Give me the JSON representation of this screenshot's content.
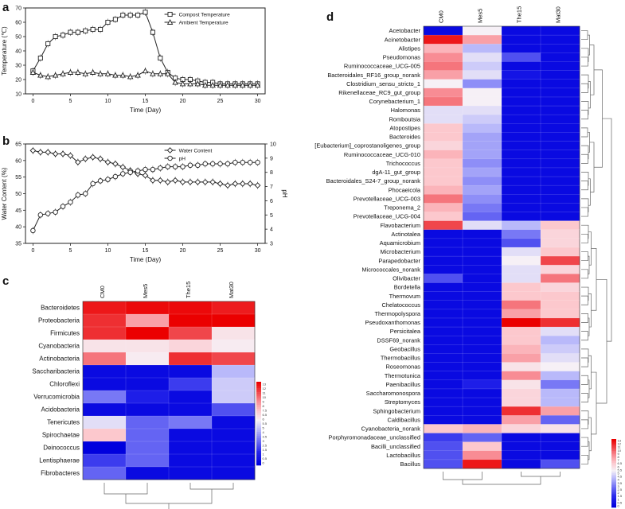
{
  "panels": {
    "a": "a",
    "b": "b",
    "c": "c",
    "d": "d"
  },
  "chart_data": [
    {
      "id": "a",
      "type": "line",
      "xlabel": "Time (Day)",
      "ylabel": "Temperature (℃)",
      "xlim": [
        -1,
        31
      ],
      "ylim": [
        10,
        70
      ],
      "xticks": [
        0,
        5,
        10,
        15,
        20,
        25,
        30
      ],
      "yticks": [
        10,
        20,
        30,
        40,
        50,
        60,
        70
      ],
      "series": [
        {
          "name": "Compost Temperature",
          "marker": "square",
          "x": [
            0,
            1,
            2,
            3,
            4,
            5,
            6,
            7,
            8,
            9,
            10,
            11,
            12,
            13,
            14,
            15,
            16,
            17,
            18,
            19,
            20,
            21,
            22,
            23,
            24,
            25,
            26,
            27,
            28,
            29,
            30
          ],
          "y": [
            26,
            35,
            45,
            50,
            51,
            53,
            53,
            54,
            55,
            55,
            60,
            62,
            65,
            65,
            65,
            67,
            53,
            35,
            25,
            21,
            20,
            20,
            19,
            18,
            18,
            17,
            17,
            17,
            17,
            17,
            17
          ]
        },
        {
          "name": "Ambient Temperature",
          "marker": "triangle",
          "x": [
            0,
            1,
            2,
            3,
            4,
            5,
            6,
            7,
            8,
            9,
            10,
            11,
            12,
            13,
            14,
            15,
            16,
            17,
            18,
            19,
            20,
            21,
            22,
            23,
            24,
            25,
            26,
            27,
            28,
            29,
            30
          ],
          "y": [
            25,
            23,
            22,
            23,
            24,
            25,
            25,
            24,
            25,
            24,
            24,
            23,
            23,
            22,
            23,
            26,
            24,
            24,
            24,
            18,
            17,
            17,
            17,
            16,
            16,
            16,
            16,
            16,
            16,
            16,
            16
          ]
        }
      ]
    },
    {
      "id": "b",
      "type": "line",
      "xlabel": "Time (Day)",
      "ylabel": "Water Content (%)",
      "ylabel_right": "pH",
      "xlim": [
        -1,
        31
      ],
      "ylim": [
        35,
        65
      ],
      "ylim_right": [
        3,
        10
      ],
      "xticks": [
        0,
        5,
        10,
        15,
        20,
        25,
        30
      ],
      "yticks": [
        35,
        40,
        45,
        50,
        55,
        60,
        65
      ],
      "yticks_right": [
        3,
        4,
        5,
        6,
        7,
        8,
        9,
        10
      ],
      "series": [
        {
          "name": "Water Content",
          "marker": "diamond",
          "axis": "left",
          "x": [
            0,
            1,
            2,
            3,
            4,
            5,
            6,
            7,
            8,
            9,
            10,
            11,
            12,
            13,
            14,
            15,
            16,
            17,
            18,
            19,
            20,
            21,
            22,
            23,
            24,
            25,
            26,
            27,
            28,
            29,
            30
          ],
          "y": [
            63,
            62.5,
            62.5,
            62,
            62,
            61.5,
            59.5,
            60.5,
            61,
            60.5,
            59.5,
            59,
            58,
            57,
            56,
            55.5,
            54,
            54,
            53.5,
            54,
            53.5,
            53.5,
            53.5,
            53.5,
            53.5,
            53,
            52.5,
            53,
            53,
            53,
            52.5
          ]
        },
        {
          "name": "pH",
          "marker": "circle",
          "axis": "right",
          "x": [
            0,
            1,
            2,
            3,
            4,
            5,
            6,
            7,
            8,
            9,
            10,
            11,
            12,
            13,
            14,
            15,
            16,
            17,
            18,
            19,
            20,
            21,
            22,
            23,
            24,
            25,
            26,
            27,
            28,
            29,
            30
          ],
          "y": [
            3.9,
            5.0,
            5.1,
            5.2,
            5.6,
            5.9,
            6.4,
            6.5,
            7.2,
            7.4,
            7.5,
            7.7,
            7.9,
            8.0,
            8.1,
            8.2,
            8.2,
            8.3,
            8.4,
            8.4,
            8.4,
            8.5,
            8.5,
            8.6,
            8.6,
            8.6,
            8.6,
            8.7,
            8.7,
            8.7,
            8.7
          ]
        }
      ]
    },
    {
      "id": "c",
      "type": "heatmap",
      "columns": [
        "CM0",
        "Mes5",
        "The15",
        "Mat30"
      ],
      "rows": [
        "Bacteroidetes",
        "Proteobacteria",
        "Firmicutes",
        "Cyanobacteria",
        "Actinobacteria",
        "Saccharibacteria",
        "Chloroflexi",
        "Verrucomicrobia",
        "Acidobacteria",
        "Tenericutes",
        "Spirochaetae",
        "Deinococcus",
        "Lentisphaerae",
        "Fibrobacteres"
      ],
      "values": [
        [
          12.5,
          12.8,
          12.8,
          12.4
        ],
        [
          12.0,
          9.5,
          13.0,
          13.0
        ],
        [
          12.0,
          13.0,
          11.5,
          7.5
        ],
        [
          7.5,
          7.5,
          8.0,
          7.2
        ],
        [
          10.5,
          7.2,
          12.0,
          11.5
        ],
        [
          0.5,
          0.5,
          0.5,
          5.5
        ],
        [
          0.5,
          0.5,
          2.5,
          6.0
        ],
        [
          4.0,
          1.5,
          0.5,
          6.0
        ],
        [
          0.5,
          0.5,
          0.5,
          3.0
        ],
        [
          6.5,
          3.5,
          4.0,
          0.5
        ],
        [
          8.5,
          3.5,
          0.5,
          0.5
        ],
        [
          0.0,
          3.5,
          0.5,
          0.5
        ],
        [
          2.5,
          3.5,
          0.5,
          0.5
        ],
        [
          3.5,
          0.5,
          0.5,
          0.5
        ]
      ],
      "colorbar_ticks": [
        "13",
        "12",
        "11",
        "10",
        "9",
        "8",
        "7.5",
        "6.5",
        "6",
        "5.5",
        "5",
        "4",
        "3.5",
        "3",
        "2.5",
        "1.5",
        "1",
        "0.5",
        "0"
      ],
      "row_dendrogram": false,
      "column_dendrogram": true
    },
    {
      "id": "d",
      "type": "heatmap",
      "columns": [
        "CM0",
        "Mes5",
        "The15",
        "Mat30"
      ],
      "rows": [
        "Acetobacter",
        "Acinetobacter",
        "Alistipes",
        "Pseudomonas",
        "Ruminococcaceae_UCG-005",
        "Bacteroidales_RF16_group_norank",
        "Clostridium_sensu_stricto_1",
        "Rikenellaceae_RC9_gut_group",
        "Corynebacterium_1",
        "Halomonas",
        "Romboutsia",
        "Atopostipes",
        "Bacteroides",
        "[Eubacterium]_coprostanoligenes_group",
        "Ruminococcaceae_UCG-010",
        "Trichococcus",
        "dgA-11_gut_group",
        "Bacteroidales_S24-7_group_norank",
        "Phocaeicola",
        "Prevotellaceae_UCG-003",
        "Treponema_2",
        "Prevotellaceae_UCG-004",
        "Flavobacterium",
        "Actinotalea",
        "Aquamicrobium",
        "Microbacterium",
        "Parapedobacter",
        "Micrococcales_norank",
        "Olivibacter",
        "Bordetella",
        "Thermovum",
        "Chelatococcus",
        "Thermopolyspora",
        "Pseudoxanthomonas",
        "Persicitalea",
        "DSSF69_norank",
        "Geobacillus",
        "Thermobacillus",
        "Roseomonas",
        "Thermotunica",
        "Paenibacillus",
        "Saccharomonospora",
        "Streptomyces",
        "Sphingobacterium",
        "Caldibacillus",
        "Cyanobacteria_norank",
        "Porphyromonadaceae_unclassified",
        "Bacilli_unclassified",
        "Lactobacillus",
        "Bacillus"
      ],
      "values": [
        [
          0.5,
          7.0,
          0.5,
          0.5
        ],
        [
          12.5,
          9.5,
          0.5,
          0.5
        ],
        [
          9.0,
          5.5,
          0.5,
          0.5
        ],
        [
          10.0,
          6.5,
          3.0,
          0.5
        ],
        [
          10.5,
          6.0,
          0.5,
          0.5
        ],
        [
          9.5,
          6.5,
          1.0,
          0.5
        ],
        [
          7.0,
          4.5,
          0.5,
          0.5
        ],
        [
          10.0,
          7.0,
          0.5,
          0.5
        ],
        [
          10.5,
          7.0,
          0.5,
          0.5
        ],
        [
          6.5,
          6.5,
          0.5,
          0.5
        ],
        [
          6.5,
          6.0,
          0.5,
          0.5
        ],
        [
          8.5,
          5.5,
          0.5,
          0.5
        ],
        [
          8.5,
          5.0,
          0.5,
          0.5
        ],
        [
          8.0,
          5.0,
          0.5,
          0.5
        ],
        [
          9.0,
          5.0,
          0.5,
          0.5
        ],
        [
          8.5,
          4.5,
          0.5,
          0.5
        ],
        [
          8.5,
          5.0,
          0.5,
          0.5
        ],
        [
          8.5,
          4.5,
          0.5,
          0.5
        ],
        [
          9.0,
          5.0,
          0.5,
          0.5
        ],
        [
          10.5,
          4.5,
          0.5,
          0.5
        ],
        [
          9.0,
          4.0,
          0.5,
          0.5
        ],
        [
          8.5,
          3.5,
          0.5,
          0.5
        ],
        [
          11.5,
          6.5,
          5.5,
          8.5
        ],
        [
          0.5,
          0.5,
          4.0,
          8.0
        ],
        [
          0.5,
          0.5,
          3.0,
          8.0
        ],
        [
          0.5,
          0.5,
          6.5,
          8.5
        ],
        [
          0.5,
          0.5,
          7.0,
          11.5
        ],
        [
          0.5,
          0.5,
          6.5,
          8.0
        ],
        [
          3.0,
          0.5,
          6.5,
          10.5
        ],
        [
          0.5,
          0.5,
          8.5,
          8.0
        ],
        [
          0.5,
          0.5,
          8.5,
          8.5
        ],
        [
          0.5,
          0.5,
          10.5,
          8.5
        ],
        [
          0.5,
          0.5,
          9.5,
          8.5
        ],
        [
          0.5,
          0.5,
          13.0,
          12.0
        ],
        [
          0.5,
          0.5,
          8.5,
          6.5
        ],
        [
          0.5,
          0.5,
          8.5,
          5.5
        ],
        [
          0.5,
          0.5,
          9.0,
          6.0
        ],
        [
          0.5,
          0.5,
          9.5,
          6.5
        ],
        [
          0.5,
          0.5,
          7.5,
          7.0
        ],
        [
          0.5,
          0.5,
          10.0,
          5.5
        ],
        [
          0.5,
          1.5,
          7.5,
          4.0
        ],
        [
          0.5,
          0.5,
          8.0,
          5.5
        ],
        [
          0.5,
          0.5,
          8.0,
          5.5
        ],
        [
          0.5,
          0.5,
          12.0,
          9.5
        ],
        [
          0.5,
          0.5,
          9.5,
          3.5
        ],
        [
          8.5,
          9.0,
          8.0,
          7.5
        ],
        [
          2.5,
          3.5,
          0.5,
          0.5
        ],
        [
          3.0,
          8.5,
          0.5,
          0.5
        ],
        [
          3.0,
          10.0,
          0.5,
          0.5
        ],
        [
          3.0,
          12.5,
          0.5,
          3.0
        ]
      ],
      "colorbar_ticks": [
        "13",
        "12",
        "11",
        "10",
        "9",
        "8",
        "7",
        "6.5",
        "6",
        "5.5",
        "5",
        "4.5",
        "4",
        "3.5",
        "3",
        "2.5",
        "2",
        "1.5",
        "1",
        "0.5",
        "0"
      ],
      "row_dendrogram": true,
      "column_dendrogram": true
    }
  ]
}
